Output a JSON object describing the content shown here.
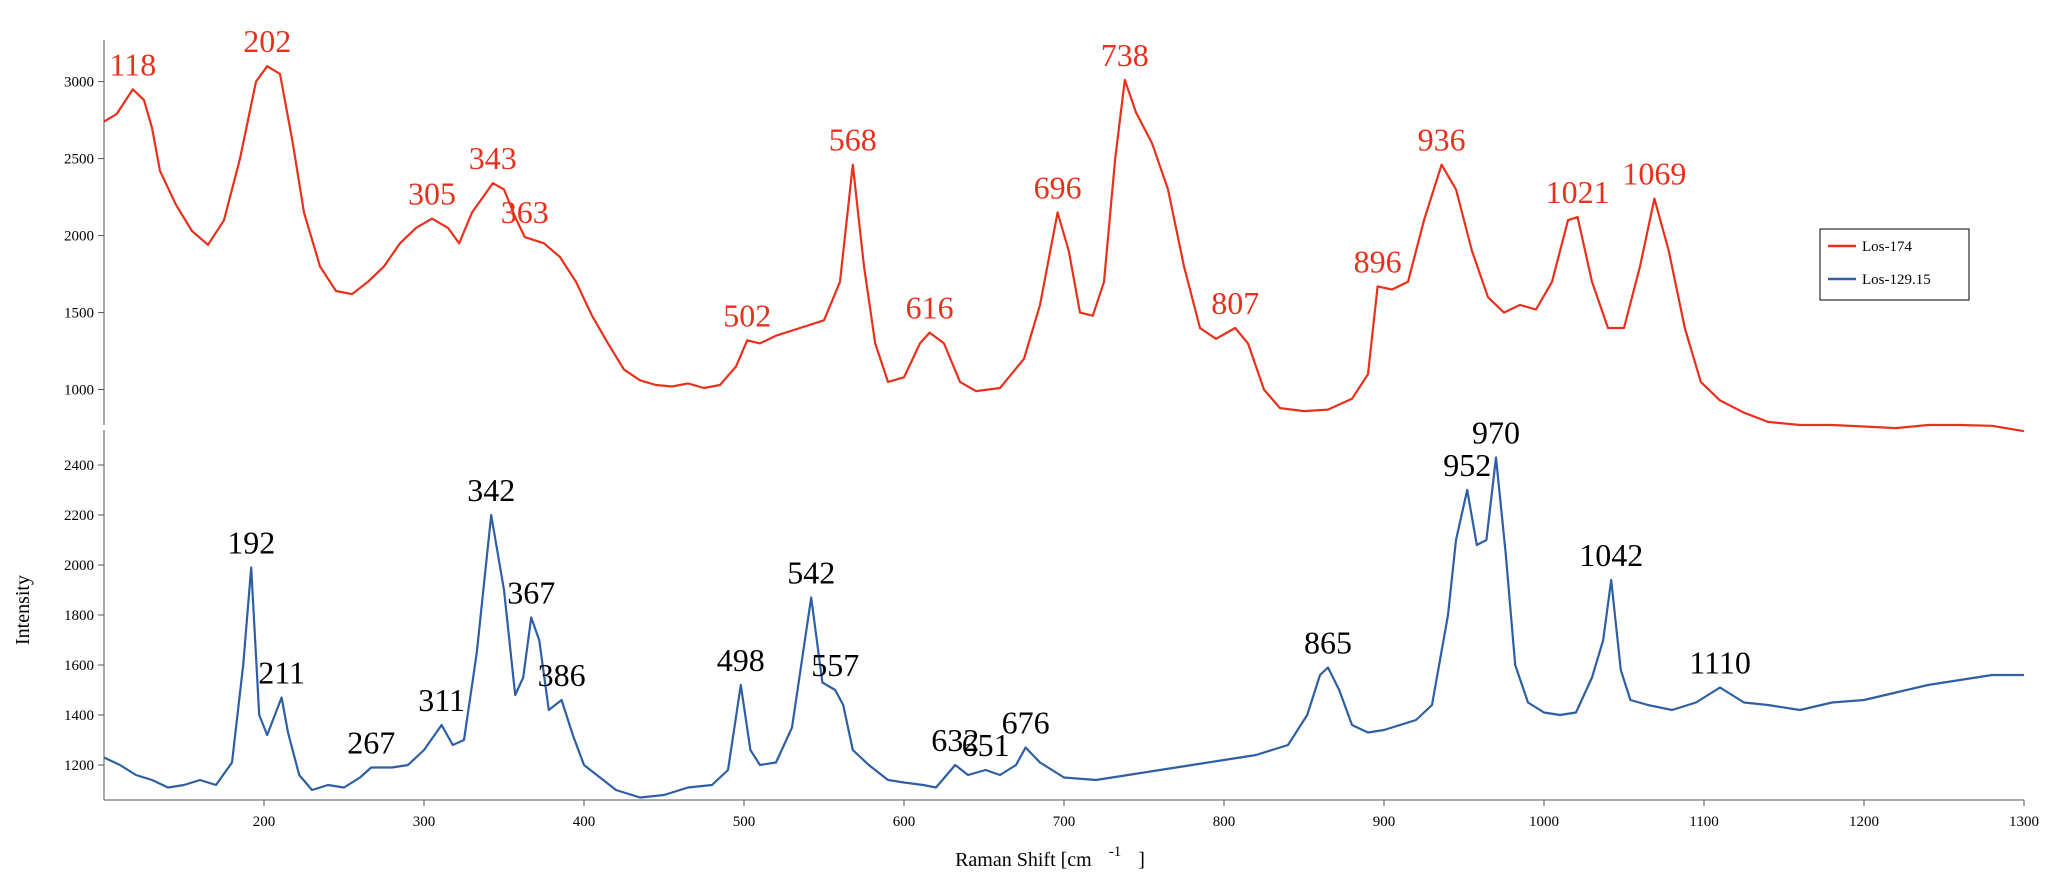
{
  "chart_data": {
    "type": "line",
    "xlabel": "Raman Shift [cm",
    "xlabel_sup": "-1",
    "xlabel_end": "]",
    "ylabel": "Intensity",
    "xlim": [
      100,
      1300
    ],
    "x_ticks": [
      200,
      300,
      400,
      500,
      600,
      700,
      800,
      900,
      1000,
      1100,
      1200,
      1300
    ],
    "grid": false,
    "legend_position": "right",
    "panels": [
      {
        "series_name": "Los-174",
        "color": "#e8311c",
        "label_color": "#e8311c",
        "ylim": [
          770,
          3270
        ],
        "y_ticks": [
          1000,
          1500,
          2000,
          2500,
          3000
        ],
        "points": [
          [
            100,
            2740
          ],
          [
            108,
            2790
          ],
          [
            118,
            2950
          ],
          [
            125,
            2880
          ],
          [
            130,
            2700
          ],
          [
            135,
            2420
          ],
          [
            145,
            2200
          ],
          [
            155,
            2030
          ],
          [
            165,
            1940
          ],
          [
            175,
            2100
          ],
          [
            185,
            2500
          ],
          [
            195,
            3000
          ],
          [
            202,
            3100
          ],
          [
            210,
            3050
          ],
          [
            218,
            2600
          ],
          [
            225,
            2150
          ],
          [
            235,
            1800
          ],
          [
            245,
            1640
          ],
          [
            255,
            1620
          ],
          [
            265,
            1700
          ],
          [
            275,
            1800
          ],
          [
            285,
            1950
          ],
          [
            295,
            2050
          ],
          [
            305,
            2110
          ],
          [
            315,
            2050
          ],
          [
            322,
            1950
          ],
          [
            330,
            2150
          ],
          [
            343,
            2340
          ],
          [
            350,
            2300
          ],
          [
            357,
            2120
          ],
          [
            363,
            1990
          ],
          [
            375,
            1950
          ],
          [
            385,
            1860
          ],
          [
            395,
            1700
          ],
          [
            405,
            1480
          ],
          [
            415,
            1300
          ],
          [
            425,
            1130
          ],
          [
            435,
            1060
          ],
          [
            445,
            1030
          ],
          [
            455,
            1020
          ],
          [
            465,
            1040
          ],
          [
            475,
            1010
          ],
          [
            485,
            1030
          ],
          [
            495,
            1150
          ],
          [
            502,
            1320
          ],
          [
            510,
            1300
          ],
          [
            520,
            1350
          ],
          [
            535,
            1400
          ],
          [
            550,
            1450
          ],
          [
            560,
            1700
          ],
          [
            568,
            2460
          ],
          [
            575,
            1800
          ],
          [
            582,
            1300
          ],
          [
            590,
            1050
          ],
          [
            600,
            1080
          ],
          [
            610,
            1300
          ],
          [
            616,
            1370
          ],
          [
            625,
            1300
          ],
          [
            635,
            1050
          ],
          [
            645,
            990
          ],
          [
            660,
            1010
          ],
          [
            675,
            1200
          ],
          [
            685,
            1550
          ],
          [
            696,
            2150
          ],
          [
            703,
            1900
          ],
          [
            710,
            1500
          ],
          [
            718,
            1480
          ],
          [
            725,
            1700
          ],
          [
            732,
            2500
          ],
          [
            738,
            3010
          ],
          [
            745,
            2800
          ],
          [
            755,
            2600
          ],
          [
            765,
            2300
          ],
          [
            775,
            1800
          ],
          [
            785,
            1400
          ],
          [
            795,
            1330
          ],
          [
            807,
            1400
          ],
          [
            815,
            1300
          ],
          [
            825,
            1000
          ],
          [
            835,
            880
          ],
          [
            850,
            860
          ],
          [
            865,
            870
          ],
          [
            880,
            940
          ],
          [
            890,
            1100
          ],
          [
            896,
            1670
          ],
          [
            905,
            1650
          ],
          [
            915,
            1700
          ],
          [
            925,
            2100
          ],
          [
            936,
            2460
          ],
          [
            945,
            2300
          ],
          [
            955,
            1900
          ],
          [
            965,
            1600
          ],
          [
            975,
            1500
          ],
          [
            985,
            1550
          ],
          [
            995,
            1520
          ],
          [
            1005,
            1700
          ],
          [
            1015,
            2100
          ],
          [
            1021,
            2120
          ],
          [
            1030,
            1700
          ],
          [
            1040,
            1400
          ],
          [
            1050,
            1400
          ],
          [
            1060,
            1800
          ],
          [
            1069,
            2240
          ],
          [
            1078,
            1900
          ],
          [
            1088,
            1400
          ],
          [
            1098,
            1050
          ],
          [
            1110,
            930
          ],
          [
            1125,
            850
          ],
          [
            1140,
            790
          ],
          [
            1160,
            770
          ],
          [
            1180,
            770
          ],
          [
            1200,
            760
          ],
          [
            1220,
            750
          ],
          [
            1240,
            770
          ],
          [
            1260,
            770
          ],
          [
            1280,
            765
          ],
          [
            1300,
            730
          ]
        ],
        "peaks": [
          {
            "label": "118",
            "x": 118,
            "y": 2950
          },
          {
            "label": "202",
            "x": 202,
            "y": 3100
          },
          {
            "label": "305",
            "x": 305,
            "y": 2110
          },
          {
            "label": "343",
            "x": 343,
            "y": 2340
          },
          {
            "label": "363",
            "x": 363,
            "y": 1990
          },
          {
            "label": "502",
            "x": 502,
            "y": 1320
          },
          {
            "label": "568",
            "x": 568,
            "y": 2460
          },
          {
            "label": "616",
            "x": 616,
            "y": 1370
          },
          {
            "label": "696",
            "x": 696,
            "y": 2150
          },
          {
            "label": "738",
            "x": 738,
            "y": 3010
          },
          {
            "label": "807",
            "x": 807,
            "y": 1400
          },
          {
            "label": "896",
            "x": 896,
            "y": 1670
          },
          {
            "label": "936",
            "x": 936,
            "y": 2460
          },
          {
            "label": "1021",
            "x": 1021,
            "y": 2120
          },
          {
            "label": "1069",
            "x": 1069,
            "y": 2240
          }
        ]
      },
      {
        "series_name": "Los-129.15",
        "color": "#2e5fa3",
        "label_color": "#000000",
        "ylim": [
          1060,
          2540
        ],
        "y_ticks": [
          1200,
          1400,
          1600,
          1800,
          2000,
          2200,
          2400
        ],
        "points": [
          [
            100,
            1230
          ],
          [
            110,
            1200
          ],
          [
            120,
            1160
          ],
          [
            130,
            1140
          ],
          [
            140,
            1110
          ],
          [
            150,
            1120
          ],
          [
            160,
            1140
          ],
          [
            170,
            1120
          ],
          [
            180,
            1210
          ],
          [
            187,
            1600
          ],
          [
            192,
            1990
          ],
          [
            197,
            1400
          ],
          [
            202,
            1320
          ],
          [
            211,
            1470
          ],
          [
            215,
            1330
          ],
          [
            222,
            1160
          ],
          [
            230,
            1100
          ],
          [
            240,
            1120
          ],
          [
            250,
            1110
          ],
          [
            260,
            1150
          ],
          [
            267,
            1190
          ],
          [
            280,
            1190
          ],
          [
            290,
            1200
          ],
          [
            300,
            1260
          ],
          [
            311,
            1360
          ],
          [
            318,
            1280
          ],
          [
            325,
            1300
          ],
          [
            333,
            1650
          ],
          [
            342,
            2200
          ],
          [
            350,
            1900
          ],
          [
            357,
            1480
          ],
          [
            362,
            1550
          ],
          [
            367,
            1790
          ],
          [
            372,
            1700
          ],
          [
            378,
            1420
          ],
          [
            386,
            1460
          ],
          [
            393,
            1320
          ],
          [
            400,
            1200
          ],
          [
            410,
            1150
          ],
          [
            420,
            1100
          ],
          [
            435,
            1070
          ],
          [
            450,
            1080
          ],
          [
            465,
            1110
          ],
          [
            480,
            1120
          ],
          [
            490,
            1180
          ],
          [
            498,
            1520
          ],
          [
            504,
            1260
          ],
          [
            510,
            1200
          ],
          [
            520,
            1210
          ],
          [
            530,
            1350
          ],
          [
            542,
            1870
          ],
          [
            549,
            1530
          ],
          [
            557,
            1500
          ],
          [
            562,
            1440
          ],
          [
            568,
            1260
          ],
          [
            578,
            1200
          ],
          [
            590,
            1140
          ],
          [
            600,
            1130
          ],
          [
            612,
            1120
          ],
          [
            620,
            1110
          ],
          [
            632,
            1200
          ],
          [
            640,
            1160
          ],
          [
            651,
            1180
          ],
          [
            660,
            1160
          ],
          [
            670,
            1200
          ],
          [
            676,
            1270
          ],
          [
            685,
            1210
          ],
          [
            700,
            1150
          ],
          [
            720,
            1140
          ],
          [
            740,
            1160
          ],
          [
            760,
            1180
          ],
          [
            780,
            1200
          ],
          [
            800,
            1220
          ],
          [
            820,
            1240
          ],
          [
            840,
            1280
          ],
          [
            852,
            1400
          ],
          [
            860,
            1560
          ],
          [
            865,
            1590
          ],
          [
            872,
            1500
          ],
          [
            880,
            1360
          ],
          [
            890,
            1330
          ],
          [
            900,
            1340
          ],
          [
            910,
            1360
          ],
          [
            920,
            1380
          ],
          [
            930,
            1440
          ],
          [
            940,
            1800
          ],
          [
            945,
            2100
          ],
          [
            952,
            2300
          ],
          [
            958,
            2080
          ],
          [
            964,
            2100
          ],
          [
            970,
            2430
          ],
          [
            976,
            2050
          ],
          [
            982,
            1600
          ],
          [
            990,
            1450
          ],
          [
            1000,
            1410
          ],
          [
            1010,
            1400
          ],
          [
            1020,
            1410
          ],
          [
            1030,
            1550
          ],
          [
            1037,
            1700
          ],
          [
            1042,
            1940
          ],
          [
            1048,
            1580
          ],
          [
            1054,
            1460
          ],
          [
            1065,
            1440
          ],
          [
            1080,
            1420
          ],
          [
            1095,
            1450
          ],
          [
            1110,
            1510
          ],
          [
            1125,
            1450
          ],
          [
            1140,
            1440
          ],
          [
            1160,
            1420
          ],
          [
            1180,
            1450
          ],
          [
            1200,
            1460
          ],
          [
            1220,
            1490
          ],
          [
            1240,
            1520
          ],
          [
            1260,
            1540
          ],
          [
            1280,
            1560
          ],
          [
            1300,
            1560
          ]
        ],
        "peaks": [
          {
            "label": "192",
            "x": 192,
            "y": 1990
          },
          {
            "label": "211",
            "x": 211,
            "y": 1470
          },
          {
            "label": "267",
            "x": 267,
            "y": 1190
          },
          {
            "label": "311",
            "x": 311,
            "y": 1360
          },
          {
            "label": "342",
            "x": 342,
            "y": 2200
          },
          {
            "label": "367",
            "x": 367,
            "y": 1790
          },
          {
            "label": "386",
            "x": 386,
            "y": 1460
          },
          {
            "label": "498",
            "x": 498,
            "y": 1520
          },
          {
            "label": "542",
            "x": 542,
            "y": 1870
          },
          {
            "label": "557",
            "x": 557,
            "y": 1500
          },
          {
            "label": "632",
            "x": 632,
            "y": 1200
          },
          {
            "label": "651",
            "x": 651,
            "y": 1180
          },
          {
            "label": "676",
            "x": 676,
            "y": 1270
          },
          {
            "label": "865",
            "x": 865,
            "y": 1590
          },
          {
            "label": "952",
            "x": 952,
            "y": 2300
          },
          {
            "label": "970",
            "x": 970,
            "y": 2430
          },
          {
            "label": "1042",
            "x": 1042,
            "y": 1940
          },
          {
            "label": "1110",
            "x": 1110,
            "y": 1510
          }
        ]
      }
    ],
    "legend": [
      {
        "name": "Los-174",
        "color": "#e8311c"
      },
      {
        "name": "Los-129.15",
        "color": "#2e5fa3"
      }
    ]
  }
}
